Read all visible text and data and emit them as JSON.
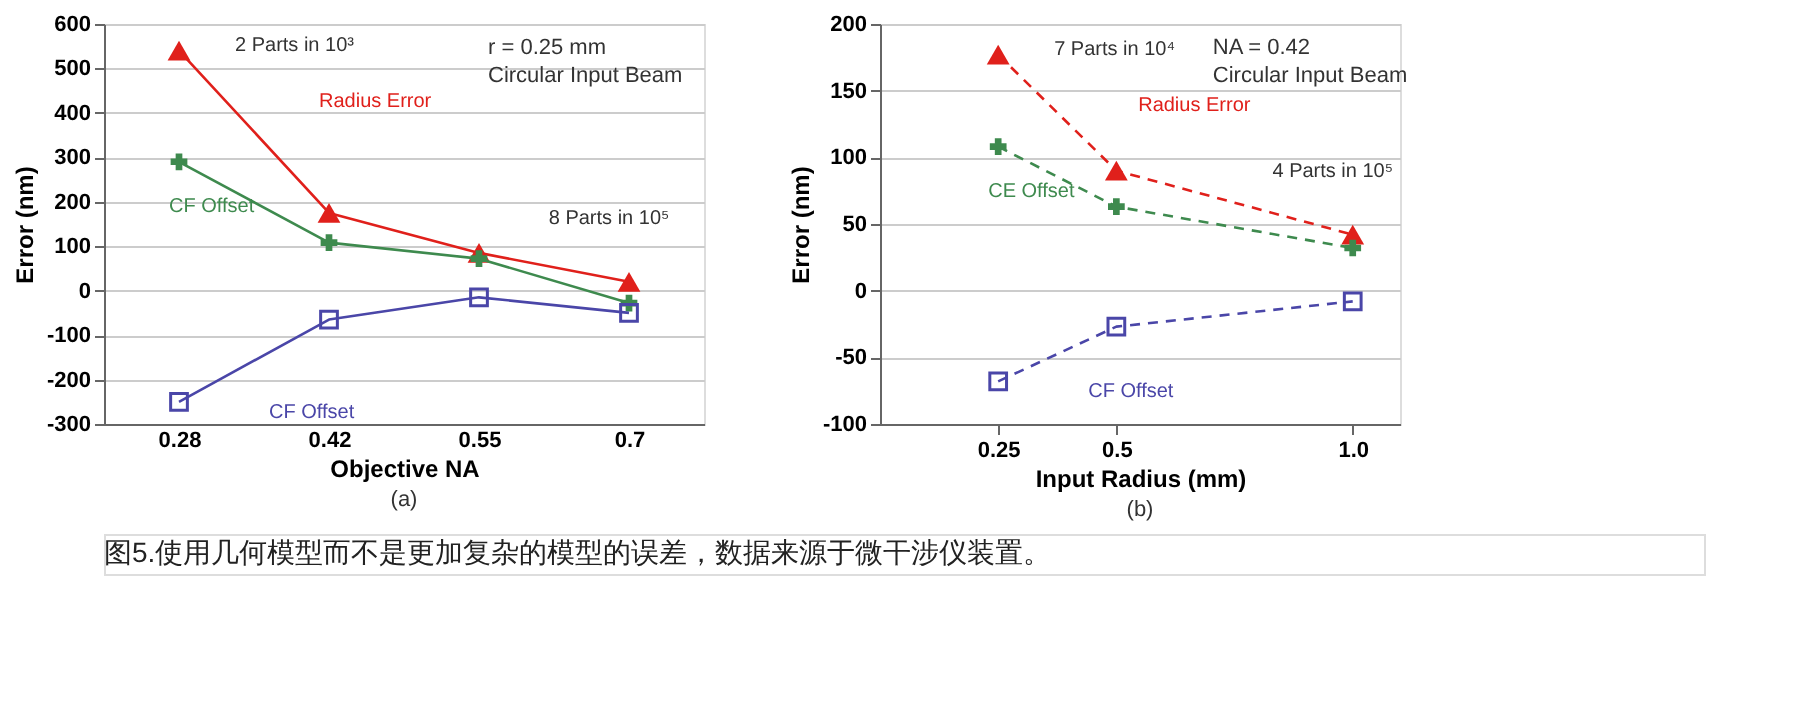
{
  "chart_data": [
    {
      "type": "line",
      "title": "(a)",
      "xlabel": "Objective NA",
      "ylabel": "Error (nm)",
      "categories": [
        "0.28",
        "0.42",
        "0.55",
        "0.7"
      ],
      "ylim": [
        -300,
        600
      ],
      "yticks": [
        -300,
        -200,
        -100,
        0,
        100,
        200,
        300,
        400,
        500,
        600
      ],
      "grid": "y",
      "line_style": "solid",
      "series": [
        {
          "name": "Radius Error",
          "color": "#e0201b",
          "marker": "triangle",
          "values": [
            540,
            175,
            85,
            20
          ]
        },
        {
          "name": "CF Offset",
          "color": "#3e8a4e",
          "marker": "cross",
          "values": [
            290,
            108,
            72,
            -28
          ]
        },
        {
          "name": "CF Offset",
          "color": "#4a46a8",
          "marker": "square",
          "values": [
            -250,
            -65,
            -15,
            -50
          ]
        }
      ],
      "annotations": [
        {
          "text": "2 Parts in 10³",
          "x": "0.28",
          "y": 540
        },
        {
          "text": "8 Parts in 10⁵",
          "x": "0.7",
          "y": 20
        },
        "r = 0.25 mm\nCircular Input Beam",
        "图5.使用几何模型而不是更加复杂的模型的误差，数据来源于微干涉仪装置。"
      ]
    },
    {
      "type": "line",
      "title": "(b)",
      "xlabel": "Input Radius (mm)",
      "ylabel": "Error (nm)",
      "x": [
        0.25,
        0.5,
        1.0
      ],
      "xlim": [
        0,
        1.1
      ],
      "xticks": [
        0.25,
        0.5,
        {
          "value": 1.0,
          "label": "1.0"
        }
      ],
      "ylim": [
        -100,
        200
      ],
      "yticks": [
        -100,
        -50,
        0,
        50,
        100,
        150,
        200
      ],
      "grid": "y",
      "line_style": "dashed",
      "series": [
        {
          "name": "Radius Error",
          "color": "#e0201b",
          "marker": "triangle",
          "values": [
            177,
            90,
            42
          ]
        },
        {
          "name": "CE Offset",
          "color": "#3e8a4e",
          "marker": "cross",
          "values": [
            108,
            63,
            32
          ]
        },
        {
          "name": "CF Offset",
          "color": "#4a46a8",
          "marker": "square",
          "values": [
            -68,
            -27,
            -8
          ]
        }
      ],
      "annotations": [
        {
          "text": "7 Parts in 10⁴",
          "x": 0.25,
          "y": 177
        },
        {
          "text": "4 Parts in 10⁵",
          "x": 1.0,
          "y": 42
        },
        "NA = 0.42\nCircular Input Beam"
      ]
    }
  ]
}
